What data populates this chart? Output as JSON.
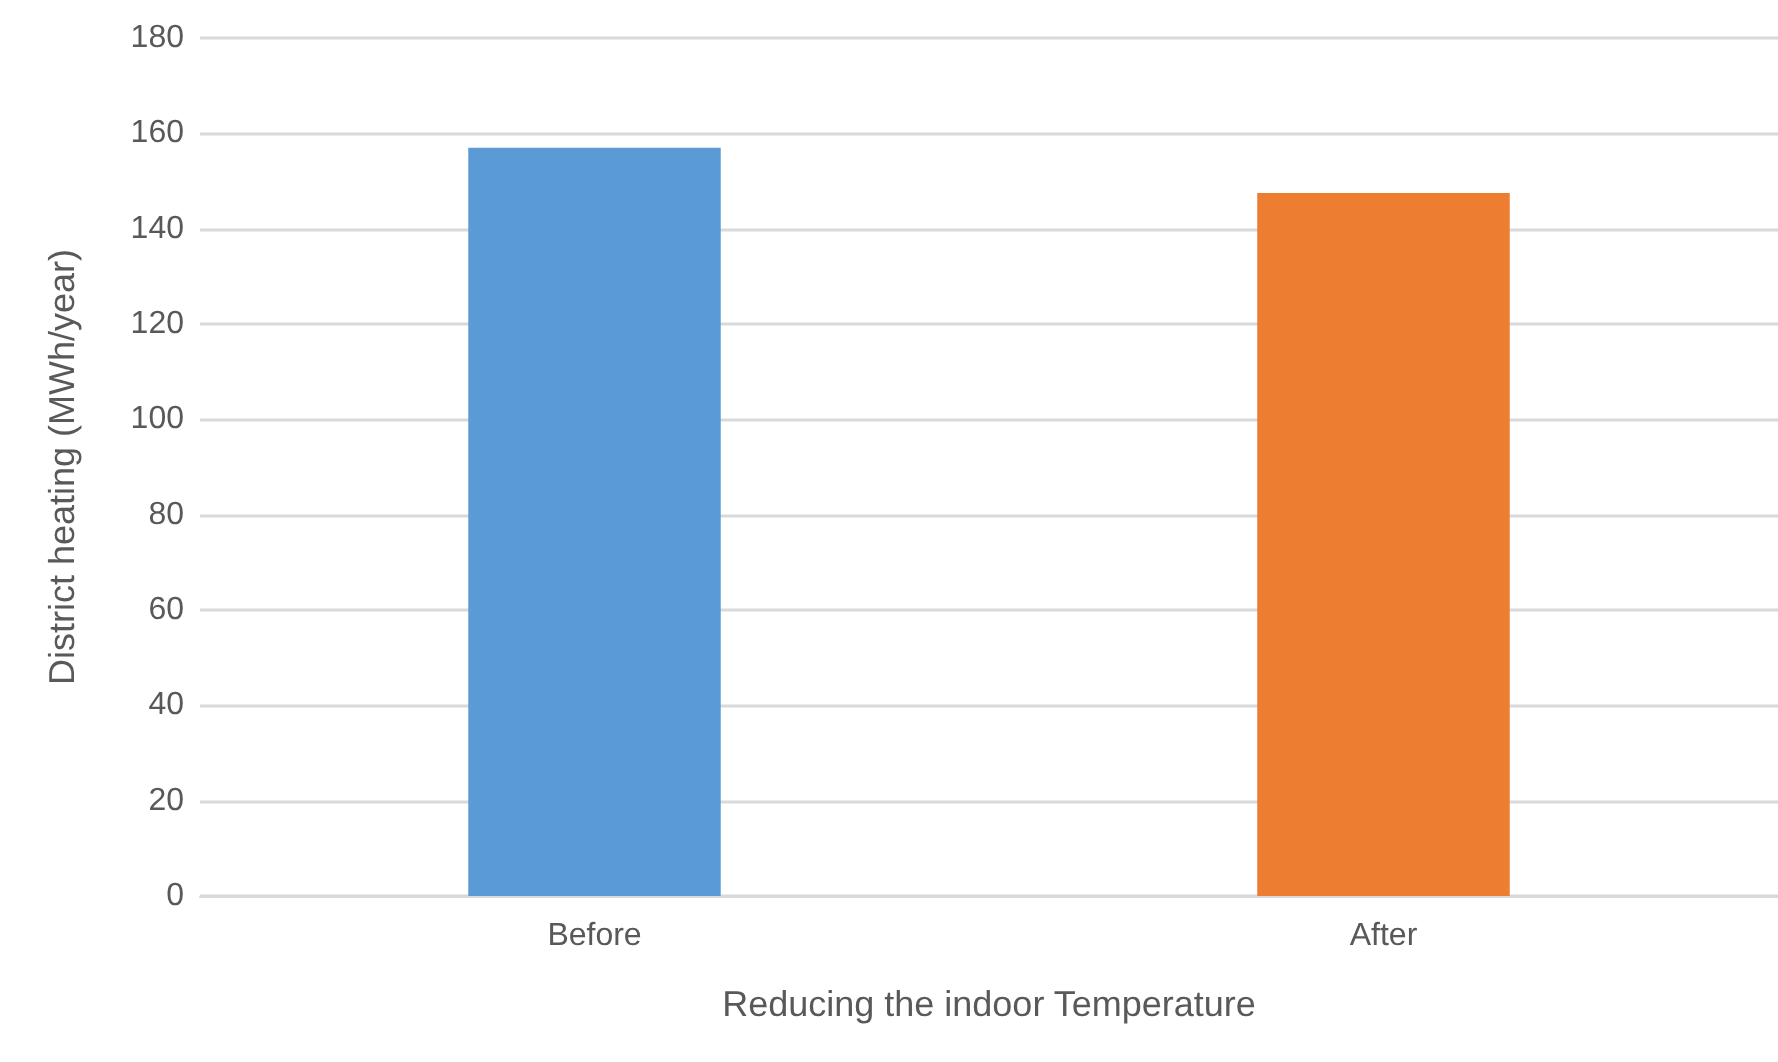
{
  "chart_data": {
    "type": "bar",
    "xlabel": "Reducing the indoor Temperature",
    "ylabel": "District heating (MWh/year)",
    "categories": [
      "Before",
      "After"
    ],
    "values": [
      157,
      147.5
    ],
    "colors": [
      "#5b9bd5",
      "#ed7d31"
    ],
    "ylim": [
      0,
      180
    ],
    "yticks": [
      0,
      20,
      40,
      60,
      80,
      100,
      120,
      140,
      160,
      180
    ],
    "grid": "y"
  }
}
